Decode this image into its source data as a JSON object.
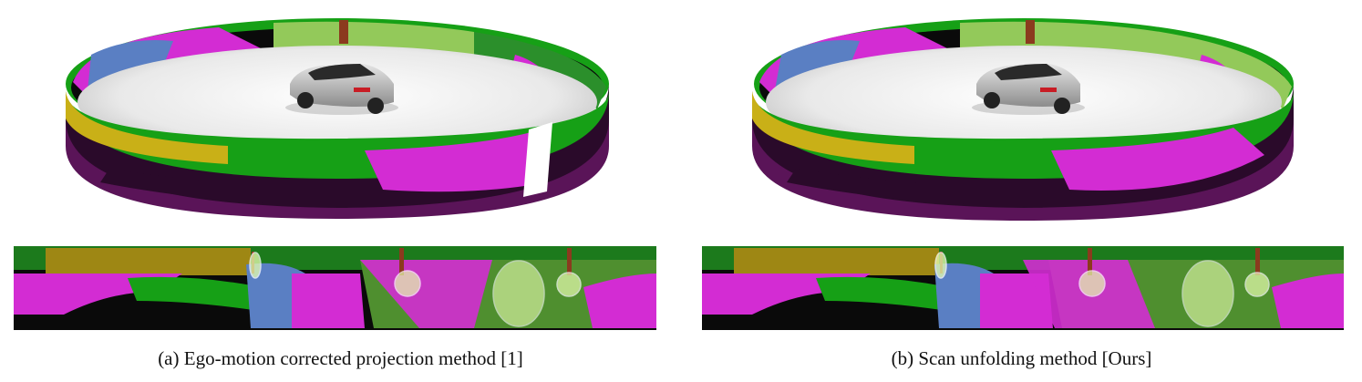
{
  "figure": {
    "panels": [
      {
        "id": "a",
        "caption": "(a)  Ego-motion corrected projection method [1]"
      },
      {
        "id": "b",
        "caption": "(b)  Scan unfolding method [Ours]"
      }
    ],
    "semantic_colors": {
      "road": "#6b1a6b",
      "sidewalk": "#d32cd3",
      "vegetation": "#16a016",
      "terrain": "#93c95a",
      "building": "#c9b017",
      "car": "#5a7fc3",
      "trunk": "#8b3a1e",
      "unlabeled": "#0a0a0a",
      "highlight": "#e8ffb0"
    }
  }
}
